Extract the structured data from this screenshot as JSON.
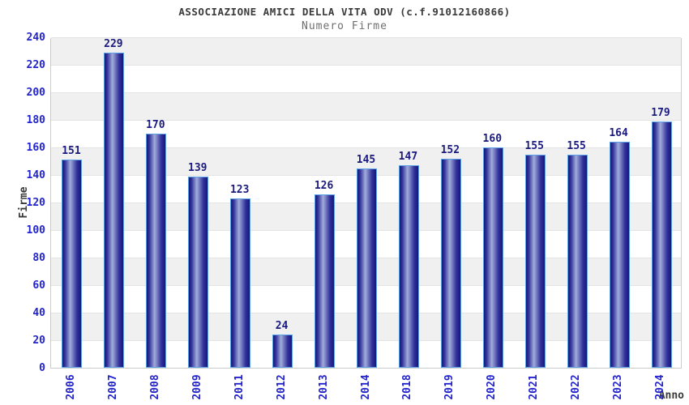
{
  "chart_data": {
    "type": "bar",
    "title": "ASSOCIAZIONE AMICI DELLA VITA ODV (c.f.91012160866)",
    "subtitle": "Numero Firme",
    "xlabel": "Anno",
    "ylabel": "Firme",
    "categories": [
      "2006",
      "2007",
      "2008",
      "2009",
      "2011",
      "2012",
      "2013",
      "2014",
      "2018",
      "2019",
      "2020",
      "2021",
      "2022",
      "2023",
      "2024"
    ],
    "values": [
      151,
      229,
      170,
      139,
      123,
      24,
      126,
      145,
      147,
      152,
      160,
      155,
      155,
      164,
      179
    ],
    "ylim": [
      0,
      240
    ],
    "ytick_step": 20,
    "grid": "alternating-horizontal-bands",
    "legend": "none",
    "colors": {
      "bar_dark": "#16167c",
      "bar_mid": "#32329a",
      "bar_light": "#a2acdb",
      "bar_border": "#5ca0e6",
      "axis_tick_label": "#2424cd",
      "value_label": "#1a1a80",
      "band_gray": "#f0f0f0",
      "band_white": "#ffffff",
      "plot_border": "#cccccc",
      "title_color": "#3a3a3a",
      "subtitle_color": "#6e6e6e"
    }
  }
}
